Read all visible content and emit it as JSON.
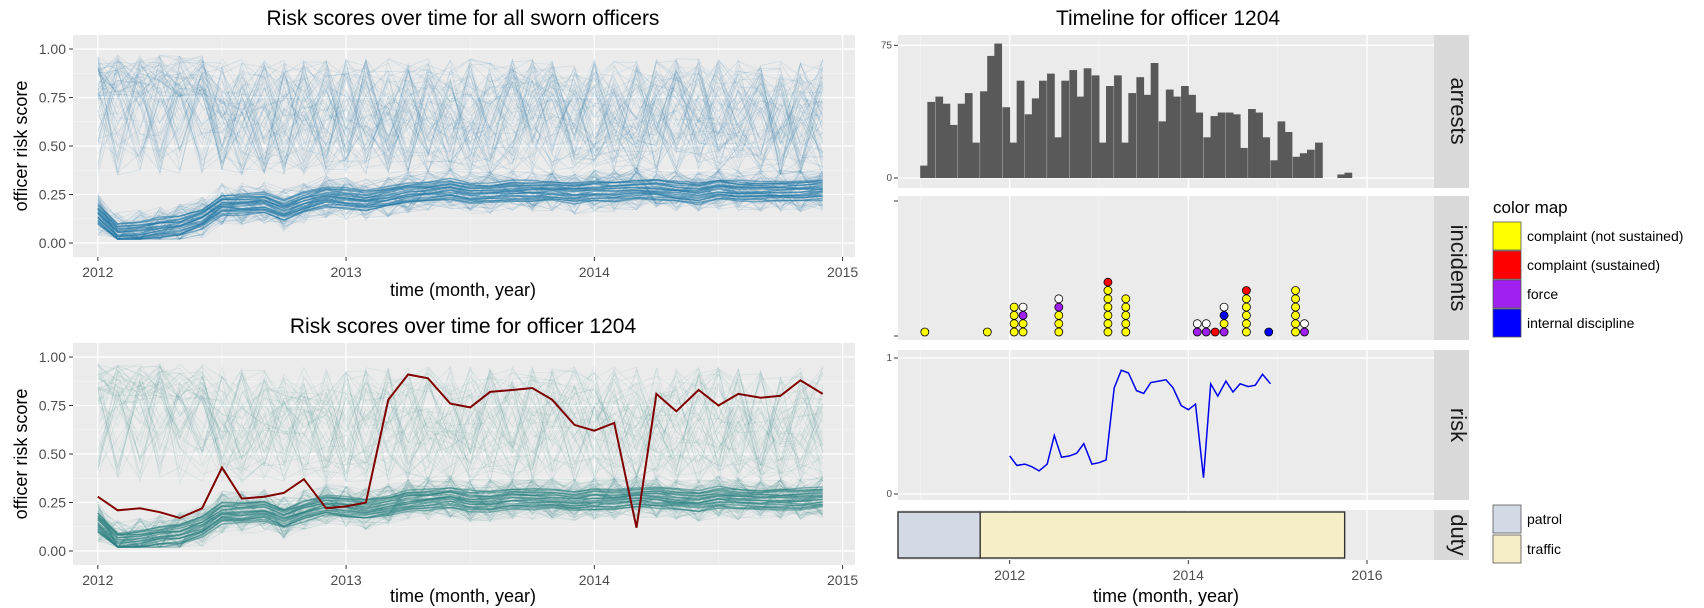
{
  "left_charts": {
    "x_ticks": [
      "2012",
      "2013",
      "2014",
      "2015"
    ],
    "y_ticks": [
      "0.00",
      "0.25",
      "0.50",
      "0.75",
      "1.00"
    ]
  },
  "right_panels": {
    "title": "Timeline for officer 1204",
    "xlabel": "time (month, year)",
    "x_ticks": [
      "2012",
      "2014",
      "2016"
    ],
    "facets": [
      "arrests",
      "incidents",
      "risk",
      "duty"
    ],
    "arrests_y_ticks": [
      "0",
      "75"
    ],
    "risk_y_ticks": [
      "0",
      "1"
    ]
  },
  "legend_incidents": {
    "title": "color map",
    "items": [
      {
        "label": "complaint (not sustained)",
        "color": "#ffff00"
      },
      {
        "label": "complaint (sustained)",
        "color": "#ff0000"
      },
      {
        "label": "force",
        "color": "#a020f0"
      },
      {
        "label": "internal discipline",
        "color": "#0000ff"
      }
    ]
  },
  "legend_duty": {
    "items": [
      {
        "label": "patrol",
        "color": "#d4dae5"
      },
      {
        "label": "traffic",
        "color": "#f6eec7"
      }
    ]
  },
  "chart_data": [
    {
      "type": "line",
      "title": "Risk scores over time for all sworn officers",
      "xlabel": "time (month, year)",
      "ylabel": "officer risk score",
      "xlim": [
        2011.9,
        2015.05
      ],
      "ylim": [
        0,
        1
      ],
      "series_color": "#1f77a4",
      "series": [
        {
          "name": "median",
          "x": [
            2012.0,
            2012.08,
            2012.17,
            2012.25,
            2012.33,
            2012.42,
            2012.5,
            2012.58,
            2012.67,
            2012.75,
            2012.83,
            2012.92,
            2013.0,
            2013.08,
            2013.17,
            2013.25,
            2013.33,
            2013.42,
            2013.5,
            2013.58,
            2013.67,
            2013.75,
            2013.83,
            2013.92,
            2014.0,
            2014.08,
            2014.17,
            2014.25,
            2014.33,
            2014.42,
            2014.5,
            2014.58,
            2014.67,
            2014.75,
            2014.83,
            2014.92
          ],
          "y": [
            0.15,
            0.05,
            0.06,
            0.08,
            0.09,
            0.13,
            0.2,
            0.2,
            0.21,
            0.17,
            0.21,
            0.24,
            0.23,
            0.22,
            0.24,
            0.26,
            0.27,
            0.28,
            0.26,
            0.26,
            0.27,
            0.27,
            0.27,
            0.26,
            0.27,
            0.27,
            0.28,
            0.28,
            0.27,
            0.26,
            0.28,
            0.27,
            0.27,
            0.27,
            0.27,
            0.28
          ]
        }
      ]
    },
    {
      "type": "line",
      "title": "Risk scores over time for officer 1204",
      "xlabel": "time (month, year)",
      "ylabel": "officer risk score",
      "xlim": [
        2011.9,
        2015.05
      ],
      "ylim": [
        0,
        1
      ],
      "background_color": "#2a8080",
      "highlight_color": "#800000",
      "series": [
        {
          "name": "median",
          "x": [
            2012.0,
            2012.08,
            2012.17,
            2012.25,
            2012.33,
            2012.42,
            2012.5,
            2012.58,
            2012.67,
            2012.75,
            2012.83,
            2012.92,
            2013.0,
            2013.08,
            2013.17,
            2013.25,
            2013.33,
            2013.42,
            2013.5,
            2013.58,
            2013.67,
            2013.75,
            2013.83,
            2013.92,
            2014.0,
            2014.08,
            2014.17,
            2014.25,
            2014.33,
            2014.42,
            2014.5,
            2014.58,
            2014.67,
            2014.75,
            2014.83,
            2014.92
          ],
          "y": [
            0.15,
            0.05,
            0.06,
            0.08,
            0.09,
            0.13,
            0.2,
            0.2,
            0.21,
            0.17,
            0.21,
            0.24,
            0.23,
            0.22,
            0.24,
            0.26,
            0.27,
            0.28,
            0.26,
            0.26,
            0.27,
            0.27,
            0.27,
            0.26,
            0.27,
            0.27,
            0.28,
            0.28,
            0.27,
            0.26,
            0.28,
            0.27,
            0.27,
            0.27,
            0.27,
            0.28
          ]
        },
        {
          "name": "officer 1204",
          "x": [
            2012.0,
            2012.08,
            2012.17,
            2012.25,
            2012.33,
            2012.42,
            2012.5,
            2012.58,
            2012.67,
            2012.75,
            2012.83,
            2012.92,
            2013.0,
            2013.08,
            2013.17,
            2013.25,
            2013.33,
            2013.42,
            2013.5,
            2013.58,
            2013.67,
            2013.75,
            2013.83,
            2013.92,
            2014.0,
            2014.08,
            2014.17,
            2014.25,
            2014.33,
            2014.42,
            2014.5,
            2014.58,
            2014.67,
            2014.75,
            2014.83,
            2014.92
          ],
          "y": [
            0.28,
            0.21,
            0.22,
            0.2,
            0.17,
            0.22,
            0.43,
            0.27,
            0.28,
            0.3,
            0.37,
            0.22,
            0.23,
            0.25,
            0.78,
            0.91,
            0.89,
            0.76,
            0.74,
            0.82,
            0.83,
            0.84,
            0.78,
            0.65,
            0.62,
            0.66,
            0.12,
            0.81,
            0.72,
            0.83,
            0.75,
            0.81,
            0.79,
            0.8,
            0.88,
            0.81
          ]
        }
      ]
    },
    {
      "type": "bar",
      "facet": "arrests",
      "x": [
        2011.04,
        2011.12,
        2011.21,
        2011.29,
        2011.37,
        2011.46,
        2011.54,
        2011.62,
        2011.71,
        2011.79,
        2011.87,
        2011.96,
        2012.04,
        2012.12,
        2012.21,
        2012.29,
        2012.37,
        2012.46,
        2012.54,
        2012.62,
        2012.71,
        2012.79,
        2012.87,
        2012.96,
        2013.04,
        2013.12,
        2013.21,
        2013.29,
        2013.37,
        2013.46,
        2013.54,
        2013.62,
        2013.71,
        2013.79,
        2013.87,
        2013.96,
        2014.04,
        2014.12,
        2014.21,
        2014.29,
        2014.37,
        2014.46,
        2014.54,
        2014.62,
        2014.71,
        2014.79,
        2014.87,
        2014.96,
        2015.04,
        2015.12,
        2015.21,
        2015.29,
        2015.37,
        2015.46,
        2015.54,
        2015.62,
        2015.71,
        2015.79
      ],
      "values": [
        7,
        43,
        46,
        42,
        30,
        42,
        48,
        20,
        49,
        69,
        76,
        40,
        20,
        55,
        36,
        45,
        55,
        59,
        23,
        55,
        61,
        46,
        62,
        58,
        20,
        52,
        58,
        20,
        48,
        57,
        47,
        65,
        32,
        50,
        46,
        52,
        47,
        37,
        23,
        35,
        37,
        37,
        36,
        17,
        39,
        37,
        23,
        10,
        32,
        26,
        12,
        14,
        16,
        20,
        0,
        0,
        2,
        3
      ],
      "ylim": [
        0,
        78
      ],
      "bar_color": "#595959"
    },
    {
      "type": "scatter",
      "facet": "incidents",
      "points": [
        {
          "x": 2011.05,
          "stack": [
            0
          ]
        },
        {
          "x": 2011.75,
          "stack": [
            0
          ]
        },
        {
          "x": 2012.05,
          "stack": [
            0,
            0,
            0,
            0
          ]
        },
        {
          "x": 2012.15,
          "stack": [
            0,
            0,
            2,
            3
          ]
        },
        {
          "x": 2012.55,
          "stack": [
            0,
            0,
            0,
            2,
            3
          ]
        },
        {
          "x": 2013.1,
          "stack": [
            0,
            0,
            0,
            0,
            0,
            0,
            1
          ]
        },
        {
          "x": 2013.3,
          "stack": [
            0,
            0,
            0,
            0,
            0
          ]
        },
        {
          "x": 2014.1,
          "stack": [
            2,
            3
          ]
        },
        {
          "x": 2014.2,
          "stack": [
            2,
            3
          ]
        },
        {
          "x": 2014.3,
          "stack": [
            1
          ]
        },
        {
          "x": 2014.4,
          "stack": [
            2,
            0,
            4,
            3
          ]
        },
        {
          "x": 2014.65,
          "stack": [
            0,
            0,
            0,
            0,
            0,
            1
          ]
        },
        {
          "x": 2014.9,
          "stack": [
            4
          ]
        },
        {
          "x": 2015.2,
          "stack": [
            0,
            0,
            0,
            0,
            0,
            0
          ]
        },
        {
          "x": 2015.3,
          "stack": [
            2,
            3
          ]
        }
      ],
      "stack_codes": [
        "complaint (not sustained)",
        "complaint (sustained)",
        "force",
        "unknown",
        "internal discipline"
      ],
      "stack_colors": [
        "#ffff00",
        "#ff0000",
        "#a020f0",
        "#ffffff",
        "#0000ff"
      ]
    },
    {
      "type": "line",
      "facet": "risk",
      "ylim": [
        0,
        1
      ],
      "line_color": "#0000ee",
      "x": [
        2012.0,
        2012.08,
        2012.17,
        2012.25,
        2012.33,
        2012.42,
        2012.5,
        2012.58,
        2012.67,
        2012.75,
        2012.83,
        2012.92,
        2013.0,
        2013.08,
        2013.17,
        2013.25,
        2013.33,
        2013.42,
        2013.5,
        2013.58,
        2013.67,
        2013.75,
        2013.83,
        2013.92,
        2014.0,
        2014.08,
        2014.17,
        2014.25,
        2014.33,
        2014.42,
        2014.5,
        2014.58,
        2014.67,
        2014.75,
        2014.83,
        2014.92
      ],
      "y": [
        0.28,
        0.21,
        0.22,
        0.2,
        0.17,
        0.22,
        0.43,
        0.27,
        0.28,
        0.3,
        0.37,
        0.22,
        0.23,
        0.25,
        0.78,
        0.91,
        0.89,
        0.76,
        0.74,
        0.82,
        0.83,
        0.84,
        0.78,
        0.65,
        0.62,
        0.66,
        0.12,
        0.81,
        0.72,
        0.83,
        0.75,
        0.81,
        0.79,
        0.8,
        0.88,
        0.81
      ]
    },
    {
      "type": "bar",
      "facet": "duty",
      "segments": [
        {
          "label": "patrol",
          "start": 2010.75,
          "end": 2011.67
        },
        {
          "label": "traffic",
          "start": 2011.67,
          "end": 2015.75
        }
      ],
      "xlim": [
        2010.75,
        2016.75
      ]
    }
  ]
}
